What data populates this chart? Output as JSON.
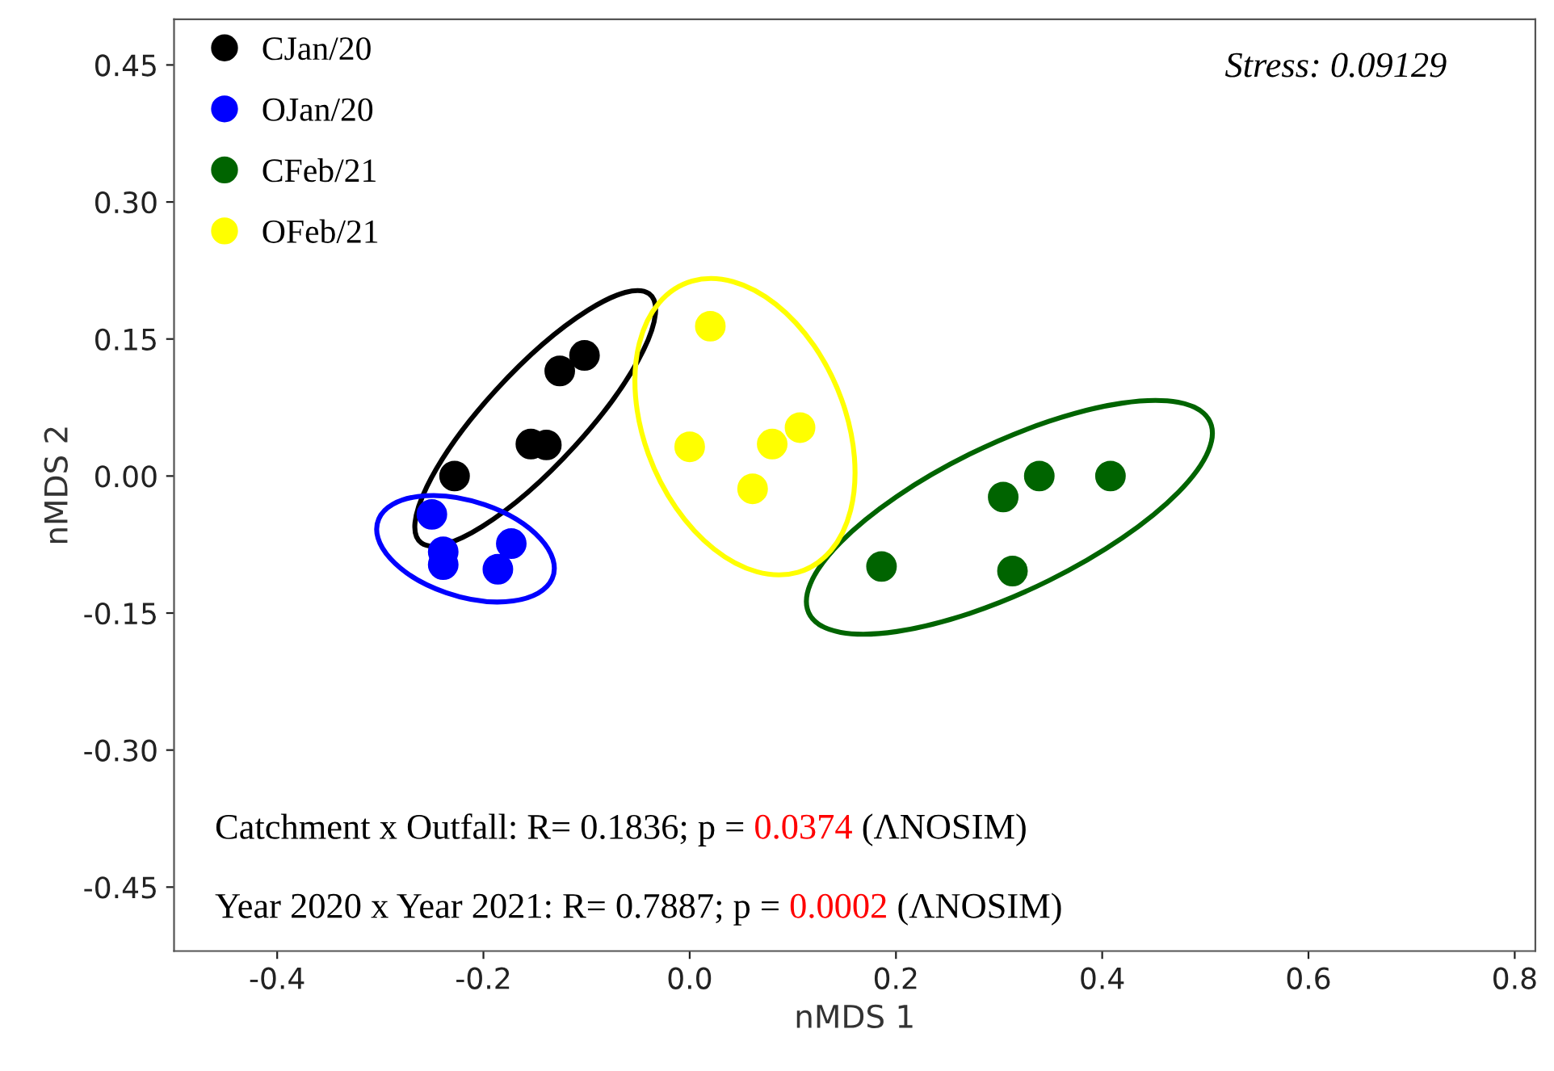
{
  "chart_data": {
    "type": "scatter",
    "xlabel": "nMDS 1",
    "ylabel": "nMDS 2",
    "xlim": [
      -0.5,
      0.82
    ],
    "ylim": [
      -0.52,
      0.5
    ],
    "xticks": [
      {
        "value": -0.4,
        "label": "-0.4"
      },
      {
        "value": -0.2,
        "label": "-0.2"
      },
      {
        "value": 0.0,
        "label": "0.0"
      },
      {
        "value": 0.2,
        "label": "0.2"
      },
      {
        "value": 0.4,
        "label": "0.4"
      },
      {
        "value": 0.6,
        "label": "0.6"
      },
      {
        "value": 0.8,
        "label": "0.8"
      }
    ],
    "yticks": [
      {
        "value": 0.45,
        "label": "0.45"
      },
      {
        "value": 0.3,
        "label": "0.30"
      },
      {
        "value": 0.15,
        "label": "0.15"
      },
      {
        "value": 0.0,
        "label": "0.00"
      },
      {
        "value": -0.15,
        "label": "-0.15"
      },
      {
        "value": -0.3,
        "label": "-0.30"
      },
      {
        "value": -0.45,
        "label": "-0.45"
      }
    ],
    "grid": false,
    "legend": "top left",
    "marker": "circle",
    "series": [
      {
        "name": "CJan/20",
        "color": "#000000",
        "x": [
          -0.228,
          -0.154,
          -0.139,
          -0.126,
          -0.102
        ],
        "values": [
          0.0,
          0.035,
          0.034,
          0.115,
          0.132
        ]
      },
      {
        "name": "OJan/20",
        "color": "#0000ff",
        "x": [
          -0.25,
          -0.239,
          -0.239,
          -0.173,
          -0.186
        ],
        "values": [
          -0.042,
          -0.083,
          -0.097,
          -0.074,
          -0.102
        ]
      },
      {
        "name": "CFeb/21",
        "color": "#006400",
        "x": [
          0.186,
          0.304,
          0.339,
          0.408,
          0.313
        ],
        "values": [
          -0.099,
          -0.023,
          0.0,
          0.0,
          -0.104
        ]
      },
      {
        "name": "OFeb/21",
        "color": "#ffff00",
        "x": [
          0.02,
          0.0,
          0.08,
          0.107,
          0.061
        ],
        "values": [
          0.164,
          0.032,
          0.035,
          0.053,
          -0.014
        ]
      }
    ],
    "annotations": [
      "Stress: 0.09129",
      "Catchment x Outfall: R= 0.1836; p = 0.0374 (ΛNOSIM)",
      "Year 2020 x Year 2021: R= 0.7887; p = 0.0002 (ΛNOSIM)"
    ]
  }
}
